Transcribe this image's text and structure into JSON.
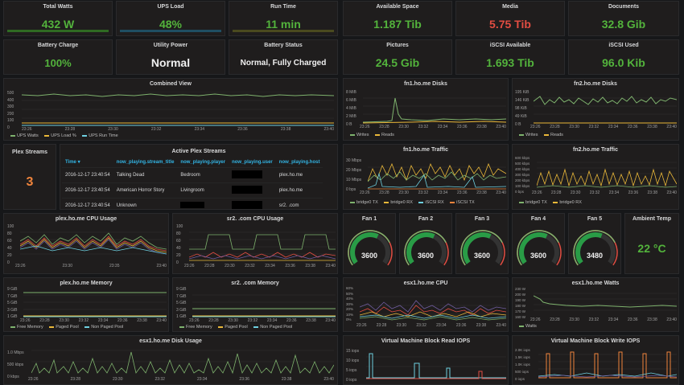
{
  "row1": [
    {
      "title": "Total Watts",
      "value": "432 W",
      "color": "green"
    },
    {
      "title": "UPS Load",
      "value": "48%",
      "color": "green"
    },
    {
      "title": "Run Time",
      "value": "11 min",
      "color": "green"
    },
    {
      "title": "Available Space",
      "value": "1.187 Tib",
      "color": "green"
    },
    {
      "title": "Media",
      "value": "5.75 Tib",
      "color": "red"
    },
    {
      "title": "Documents",
      "value": "32.8 Gib",
      "color": "green"
    }
  ],
  "row2": [
    {
      "title": "Battery Charge",
      "value": "100%",
      "color": "green"
    },
    {
      "title": "Utility Power",
      "value": "Normal",
      "color": "white"
    },
    {
      "title": "Battery Status",
      "value": "Normal, Fully Charged",
      "color": "white"
    },
    {
      "title": "Pictures",
      "value": "24.5 Gib",
      "color": "green"
    },
    {
      "title": "iSCSI Available",
      "value": "1.693 Tib",
      "color": "green"
    },
    {
      "title": "iSCSI Used",
      "value": "96.0 Kib",
      "color": "green"
    }
  ],
  "combined": {
    "title": "Combined View",
    "legend": [
      "UPS Watts",
      "UPS Load %",
      "UPS Run Time"
    ],
    "yticks": [
      "500",
      "400",
      "300",
      "200",
      "100",
      "0"
    ],
    "xticks": [
      "23:26",
      "23:28",
      "23:30",
      "23:32",
      "23:34",
      "23:36",
      "23:38",
      "23:40"
    ]
  },
  "fn1disks": {
    "title": "fn1.ho.me Disks",
    "legend": [
      "Writes",
      "Reads"
    ],
    "yticks": [
      "8 MiB",
      "6 MiB",
      "4 MiB",
      "2 MiB",
      "0 B"
    ],
    "xticks": [
      "23:26",
      "23:28",
      "23:30",
      "23:32",
      "23:34",
      "23:36",
      "23:38",
      "23:40"
    ]
  },
  "fn2disks": {
    "title": "fn2.ho.me Disks",
    "legend": [
      "Writes",
      "Reads"
    ],
    "yticks": [
      "195 KiB",
      "146 KiB",
      "98 KiB",
      "49 KiB",
      "0 B"
    ],
    "xticks": [
      "23:26",
      "23:28",
      "23:30",
      "23:32",
      "23:34",
      "23:36",
      "23:38",
      "23:40"
    ]
  },
  "plex": {
    "title": "Plex Streams",
    "value": "3"
  },
  "active": {
    "title": "Active Plex Streams",
    "headers": [
      "Time ▾",
      "now_playing.stream_title",
      "now_playing.player",
      "now_playing.user",
      "now_playing.host"
    ],
    "rows": [
      [
        "2016-12-17 23:40:54",
        "Talking Dead",
        "Bedroom",
        "",
        "plex.ho.me"
      ],
      [
        "2016-12-17 23:40:54",
        "American Horror Story",
        "Livingroom",
        "",
        "plex.ho.me"
      ],
      [
        "2016-12-17 23:40:54",
        "Unknown",
        "",
        "",
        "sr2.     .com"
      ]
    ]
  },
  "fn1traffic": {
    "title": "fn1.ho.me Traffic",
    "legend": [
      "bridge0 TX",
      "bridge0 RX",
      "iSCSI RX",
      "iSCSI TX"
    ],
    "yticks": [
      "30 Mbps",
      "20 Mbps",
      "10 Mbps",
      "0 bps"
    ],
    "xticks": [
      "23:26",
      "23:28",
      "23:30",
      "23:32",
      "23:34",
      "23:36",
      "23:38",
      "23:40"
    ]
  },
  "fn2traffic": {
    "title": "fn2.ho.me Traffic",
    "legend": [
      "bridge0 TX",
      "bridge0 RX"
    ],
    "yticks": [
      "600 kbps",
      "500 kbps",
      "400 kbps",
      "300 kbps",
      "200 kbps",
      "100 kbps",
      "0 bps"
    ],
    "xticks": [
      "23:26",
      "23:28",
      "23:30",
      "23:32",
      "23:34",
      "23:36",
      "23:38",
      "23:40"
    ]
  },
  "plexcpu": {
    "title": "plex.ho.me CPU Usage",
    "yticks": [
      "100",
      "80",
      "60",
      "40",
      "20",
      "0"
    ],
    "xticks": [
      "23:26",
      "23:30",
      "23:35",
      "23:40"
    ]
  },
  "sr2cpu": {
    "title": "sr2.       .com CPU Usage",
    "yticks": [
      "100",
      "80",
      "60",
      "40",
      "20",
      "0"
    ],
    "xticks": [
      "23:26",
      "23:28",
      "23:30",
      "23:32",
      "23:34",
      "23:36",
      "23:38",
      "23:40"
    ]
  },
  "fans": [
    {
      "title": "Fan 1",
      "value": "3600",
      "level": 0.6
    },
    {
      "title": "Fan 2",
      "value": "3600",
      "level": 0.6
    },
    {
      "title": "Fan 3",
      "value": "3600",
      "level": 0.6
    },
    {
      "title": "Fan 4",
      "value": "3600",
      "level": 0.6
    },
    {
      "title": "Fan 5",
      "value": "3480",
      "level": 0.58
    }
  ],
  "ambient": {
    "title": "Ambient Temp",
    "value": "22 °C"
  },
  "plexmem": {
    "title": "plex.ho.me Memory",
    "legend": [
      "Free Memory",
      "Paged Pool",
      "Non Paged Pool"
    ],
    "yticks": [
      "9 GiB",
      "7 GiB",
      "5 GiB",
      "3 GiB",
      "1 GiB"
    ],
    "xticks": [
      "23:26",
      "23:28",
      "23:30",
      "23:32",
      "23:34",
      "23:36",
      "23:38",
      "23:40"
    ]
  },
  "sr2mem": {
    "title": "sr2.       .com Memory",
    "legend": [
      "Free Memory",
      "Paged Pool",
      "Non Paged Pool"
    ],
    "yticks": [
      "9 GiB",
      "7 GiB",
      "5 GiB",
      "3 GiB",
      "1 GiB"
    ],
    "xticks": [
      "23:26",
      "23:28",
      "23:30",
      "23:32",
      "23:34",
      "23:36",
      "23:38",
      "23:40"
    ]
  },
  "esxcpu": {
    "title": "esx1.ho.me CPU",
    "yticks": [
      "60%",
      "50%",
      "40%",
      "30%",
      "20%",
      "10%",
      "0%"
    ],
    "xticks": [
      "23:26",
      "23:28",
      "23:30",
      "23:32",
      "23:34",
      "23:36",
      "23:38",
      "23:40"
    ]
  },
  "esxwatts": {
    "title": "esx1.ho.me Watts",
    "legend": [
      "Watts"
    ],
    "yticks": [
      "230 W",
      "200 W",
      "190 W",
      "180 W",
      "170 W",
      "160 W"
    ],
    "xticks": [
      "23:26",
      "23:28",
      "23:30",
      "23:32",
      "23:34",
      "23:36",
      "23:38",
      "23:40"
    ]
  },
  "esxdisk": {
    "title": "esx1.ho.me Disk Usage",
    "yticks": [
      "1.0 Mbps",
      "500 kbps",
      "0 kbps"
    ],
    "xticks": [
      "23:26",
      "23:28",
      "23:30",
      "23:32",
      "23:34",
      "23:36",
      "23:38",
      "23:40"
    ]
  },
  "vmread": {
    "title": "Virtual Machine Block Read IOPS",
    "yticks": [
      "15 iops",
      "10 iops",
      "5 iops",
      "0 iops"
    ],
    "xticks": [
      "23:26",
      "23:30",
      "23:35",
      "23:40"
    ]
  },
  "vmwrite": {
    "title": "Virtual Machine Block Write IOPS",
    "yticks": [
      "2.0K iops",
      "1.5K iops",
      "1.0K iops",
      "500 iops",
      "0 iops"
    ],
    "xticks": [
      "23:26",
      "23:30",
      "23:35",
      "23:40"
    ]
  },
  "colors": {
    "green": "#7eb26d",
    "yellow": "#eab839",
    "blue": "#6ed0e0",
    "orange": "#ef843c",
    "red": "#e24d42",
    "purple": "#705da0",
    "gaugeGreen": "#299c46"
  }
}
